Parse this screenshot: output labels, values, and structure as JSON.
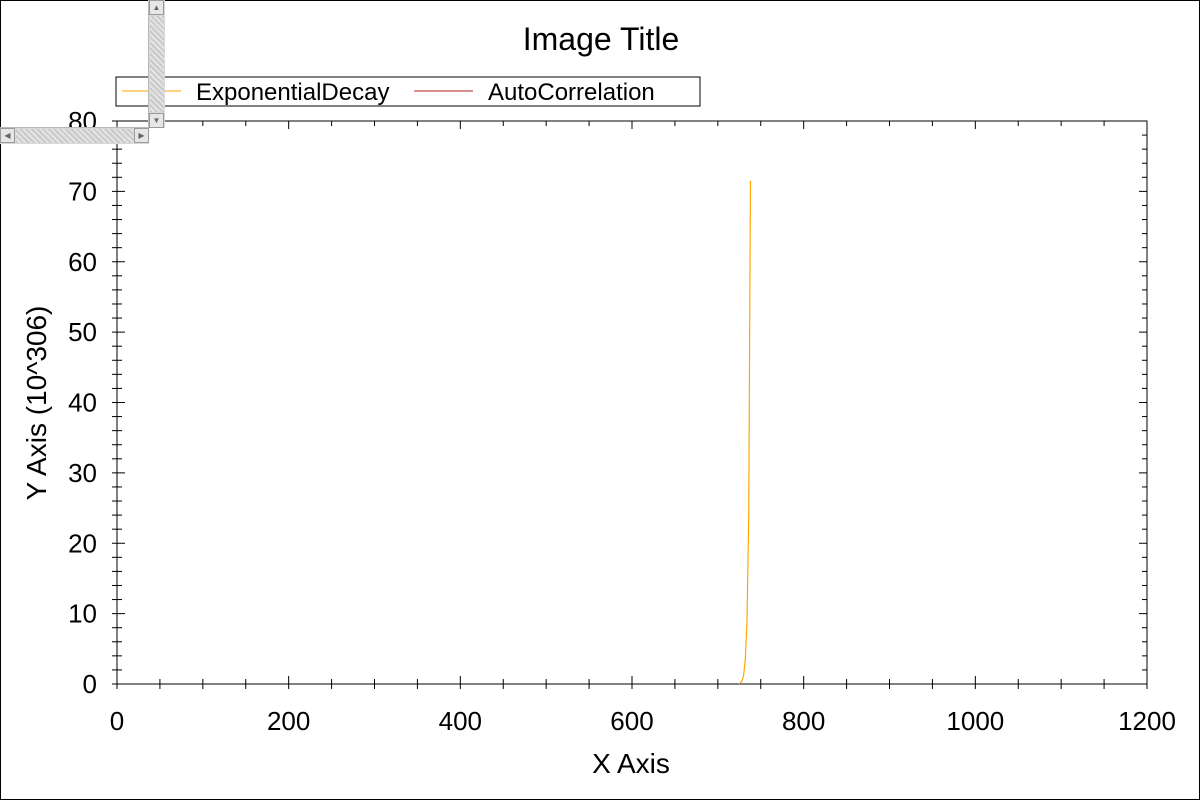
{
  "chart_data": {
    "type": "line",
    "title": "Image Title",
    "xlabel": "X Axis",
    "ylabel": "Y Axis (10^306)",
    "xlim": [
      0,
      1200
    ],
    "ylim": [
      0,
      80
    ],
    "x_ticks": [
      "0",
      "200",
      "400",
      "600",
      "800",
      "1000",
      "1200"
    ],
    "y_ticks": [
      "0",
      "10",
      "20",
      "30",
      "40",
      "50",
      "60",
      "70",
      "80"
    ],
    "legend_placement": "top-left, above plot",
    "series": [
      {
        "name": "ExponentialDecay",
        "color": "#ffa500",
        "x": [
          725,
          728,
          730,
          732,
          734,
          736,
          737,
          738
        ],
        "y": [
          0,
          0.4,
          1.2,
          3.5,
          9,
          24,
          48,
          71.5
        ]
      },
      {
        "name": "AutoCorrelation",
        "color": "#b22222",
        "x": [],
        "y": []
      }
    ]
  },
  "scrollbars": {
    "up_arrow": "▲",
    "down_arrow": "▼",
    "left_arrow": "◀",
    "right_arrow": "▶"
  }
}
